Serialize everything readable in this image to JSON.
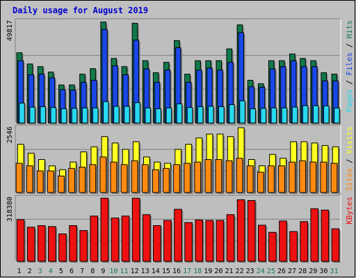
{
  "colors": {
    "background": "#c0c0c0",
    "panel": "#bebebe",
    "title": "#0000cc",
    "hits": "#117a4b",
    "files": "#1a47e6",
    "pages": "#27d8f0",
    "visits": "#ffff22",
    "sites": "#ff8a10",
    "kbytes": "#ee1111",
    "weekend_day_label": "#117a4b",
    "weekday_label": "#000000"
  },
  "chart_data": {
    "type": "bar",
    "title": "Daily usage for August 2019",
    "categories": [
      "1",
      "2",
      "3",
      "4",
      "5",
      "6",
      "7",
      "8",
      "9",
      "10",
      "11",
      "12",
      "13",
      "14",
      "15",
      "16",
      "17",
      "18",
      "19",
      "20",
      "21",
      "22",
      "23",
      "24",
      "25",
      "26",
      "27",
      "28",
      "29",
      "30",
      "31"
    ],
    "weekend_days": [
      "3",
      "4",
      "10",
      "11",
      "17",
      "18",
      "24",
      "25",
      "31"
    ],
    "panels": [
      {
        "name": "hits-files-pages",
        "ymax_label": "49817",
        "ylim": [
          0,
          49817
        ],
        "side_labels": [
          {
            "text": "Pages",
            "color": "#27d8f0"
          },
          {
            "text": " / ",
            "color": "#000000"
          },
          {
            "text": "Files",
            "color": "#1a47e6"
          },
          {
            "text": " / ",
            "color": "#000000"
          },
          {
            "text": "Hits",
            "color": "#117a4b"
          }
        ],
        "series": [
          {
            "name": "Hits",
            "color": "#117a4b",
            "values": [
              34500,
              29000,
              27700,
              25000,
              18700,
              18700,
              24000,
              26700,
              49600,
              31700,
              27700,
              49000,
              30600,
              24700,
              29800,
              40500,
              24000,
              30600,
              30600,
              30600,
              36400,
              48200,
              21000,
              19300,
              30600,
              30600,
              33900,
              31700,
              30600,
              24700,
              24000
            ]
          },
          {
            "name": "Files",
            "color": "#1a47e6",
            "values": [
              30600,
              23700,
              24000,
              22200,
              16400,
              16200,
              20000,
              21000,
              46000,
              28100,
              23700,
              40700,
              26600,
              20000,
              26000,
              37000,
              20000,
              26000,
              27000,
              26000,
              29800,
              44400,
              17800,
              17600,
              26600,
              27700,
              30600,
              27700,
              27700,
              20700,
              20700
            ]
          },
          {
            "name": "Pages",
            "color": "#27d8f0",
            "values": [
              9800,
              7800,
              8000,
              7600,
              7000,
              7200,
              7400,
              7400,
              10500,
              8200,
              8200,
              10000,
              7400,
              7000,
              7400,
              9400,
              7600,
              8000,
              8200,
              8000,
              9000,
              10900,
              7000,
              7200,
              7400,
              7400,
              7800,
              8500,
              8500,
              8400,
              7400
            ]
          }
        ]
      },
      {
        "name": "visits-sites",
        "ymax_label": "2546",
        "ylim": [
          0,
          2546
        ],
        "side_labels": [
          {
            "text": "Sites",
            "color": "#ff8a10"
          },
          {
            "text": " / ",
            "color": "#000000"
          },
          {
            "text": "Visits",
            "color": "#ffff22"
          }
        ],
        "series": [
          {
            "name": "Visits",
            "color": "#ffff22",
            "values": [
              1900,
              1550,
              1300,
              1050,
              900,
              1200,
              1600,
              1800,
              2200,
              1950,
              1700,
              2000,
              1400,
              1200,
              1150,
              1700,
              1900,
              2150,
              2300,
              2300,
              2200,
              2550,
              1300,
              1050,
              1500,
              1350,
              2000,
              2000,
              1950,
              1850,
              1800
            ]
          },
          {
            "name": "Sites",
            "color": "#ff8a10",
            "values": [
              1150,
              1050,
              850,
              850,
              650,
              950,
              1000,
              1100,
              1400,
              1200,
              1100,
              1250,
              1100,
              900,
              950,
              1100,
              1150,
              1200,
              1300,
              1300,
              1250,
              1350,
              1050,
              800,
              1050,
              1050,
              1200,
              1250,
              1200,
              1200,
              1150
            ]
          }
        ]
      },
      {
        "name": "kbytes",
        "ymax_label": "318380",
        "ylim": [
          0,
          318380
        ],
        "side_labels": [
          {
            "text": "KBytes",
            "color": "#ee1111"
          }
        ],
        "series": [
          {
            "name": "KBytes",
            "color": "#ee1111",
            "values": [
              210000,
              172000,
              180000,
              175000,
              138000,
              180000,
              155000,
              228000,
              318000,
              218000,
              228000,
              318000,
              235000,
              180000,
              206000,
              262000,
              195000,
              208000,
              206000,
              206000,
              235000,
              310000,
              306000,
              182000,
              146000,
              203000,
              150000,
              200000,
              265000,
              258000,
              164000
            ]
          }
        ]
      }
    ]
  }
}
